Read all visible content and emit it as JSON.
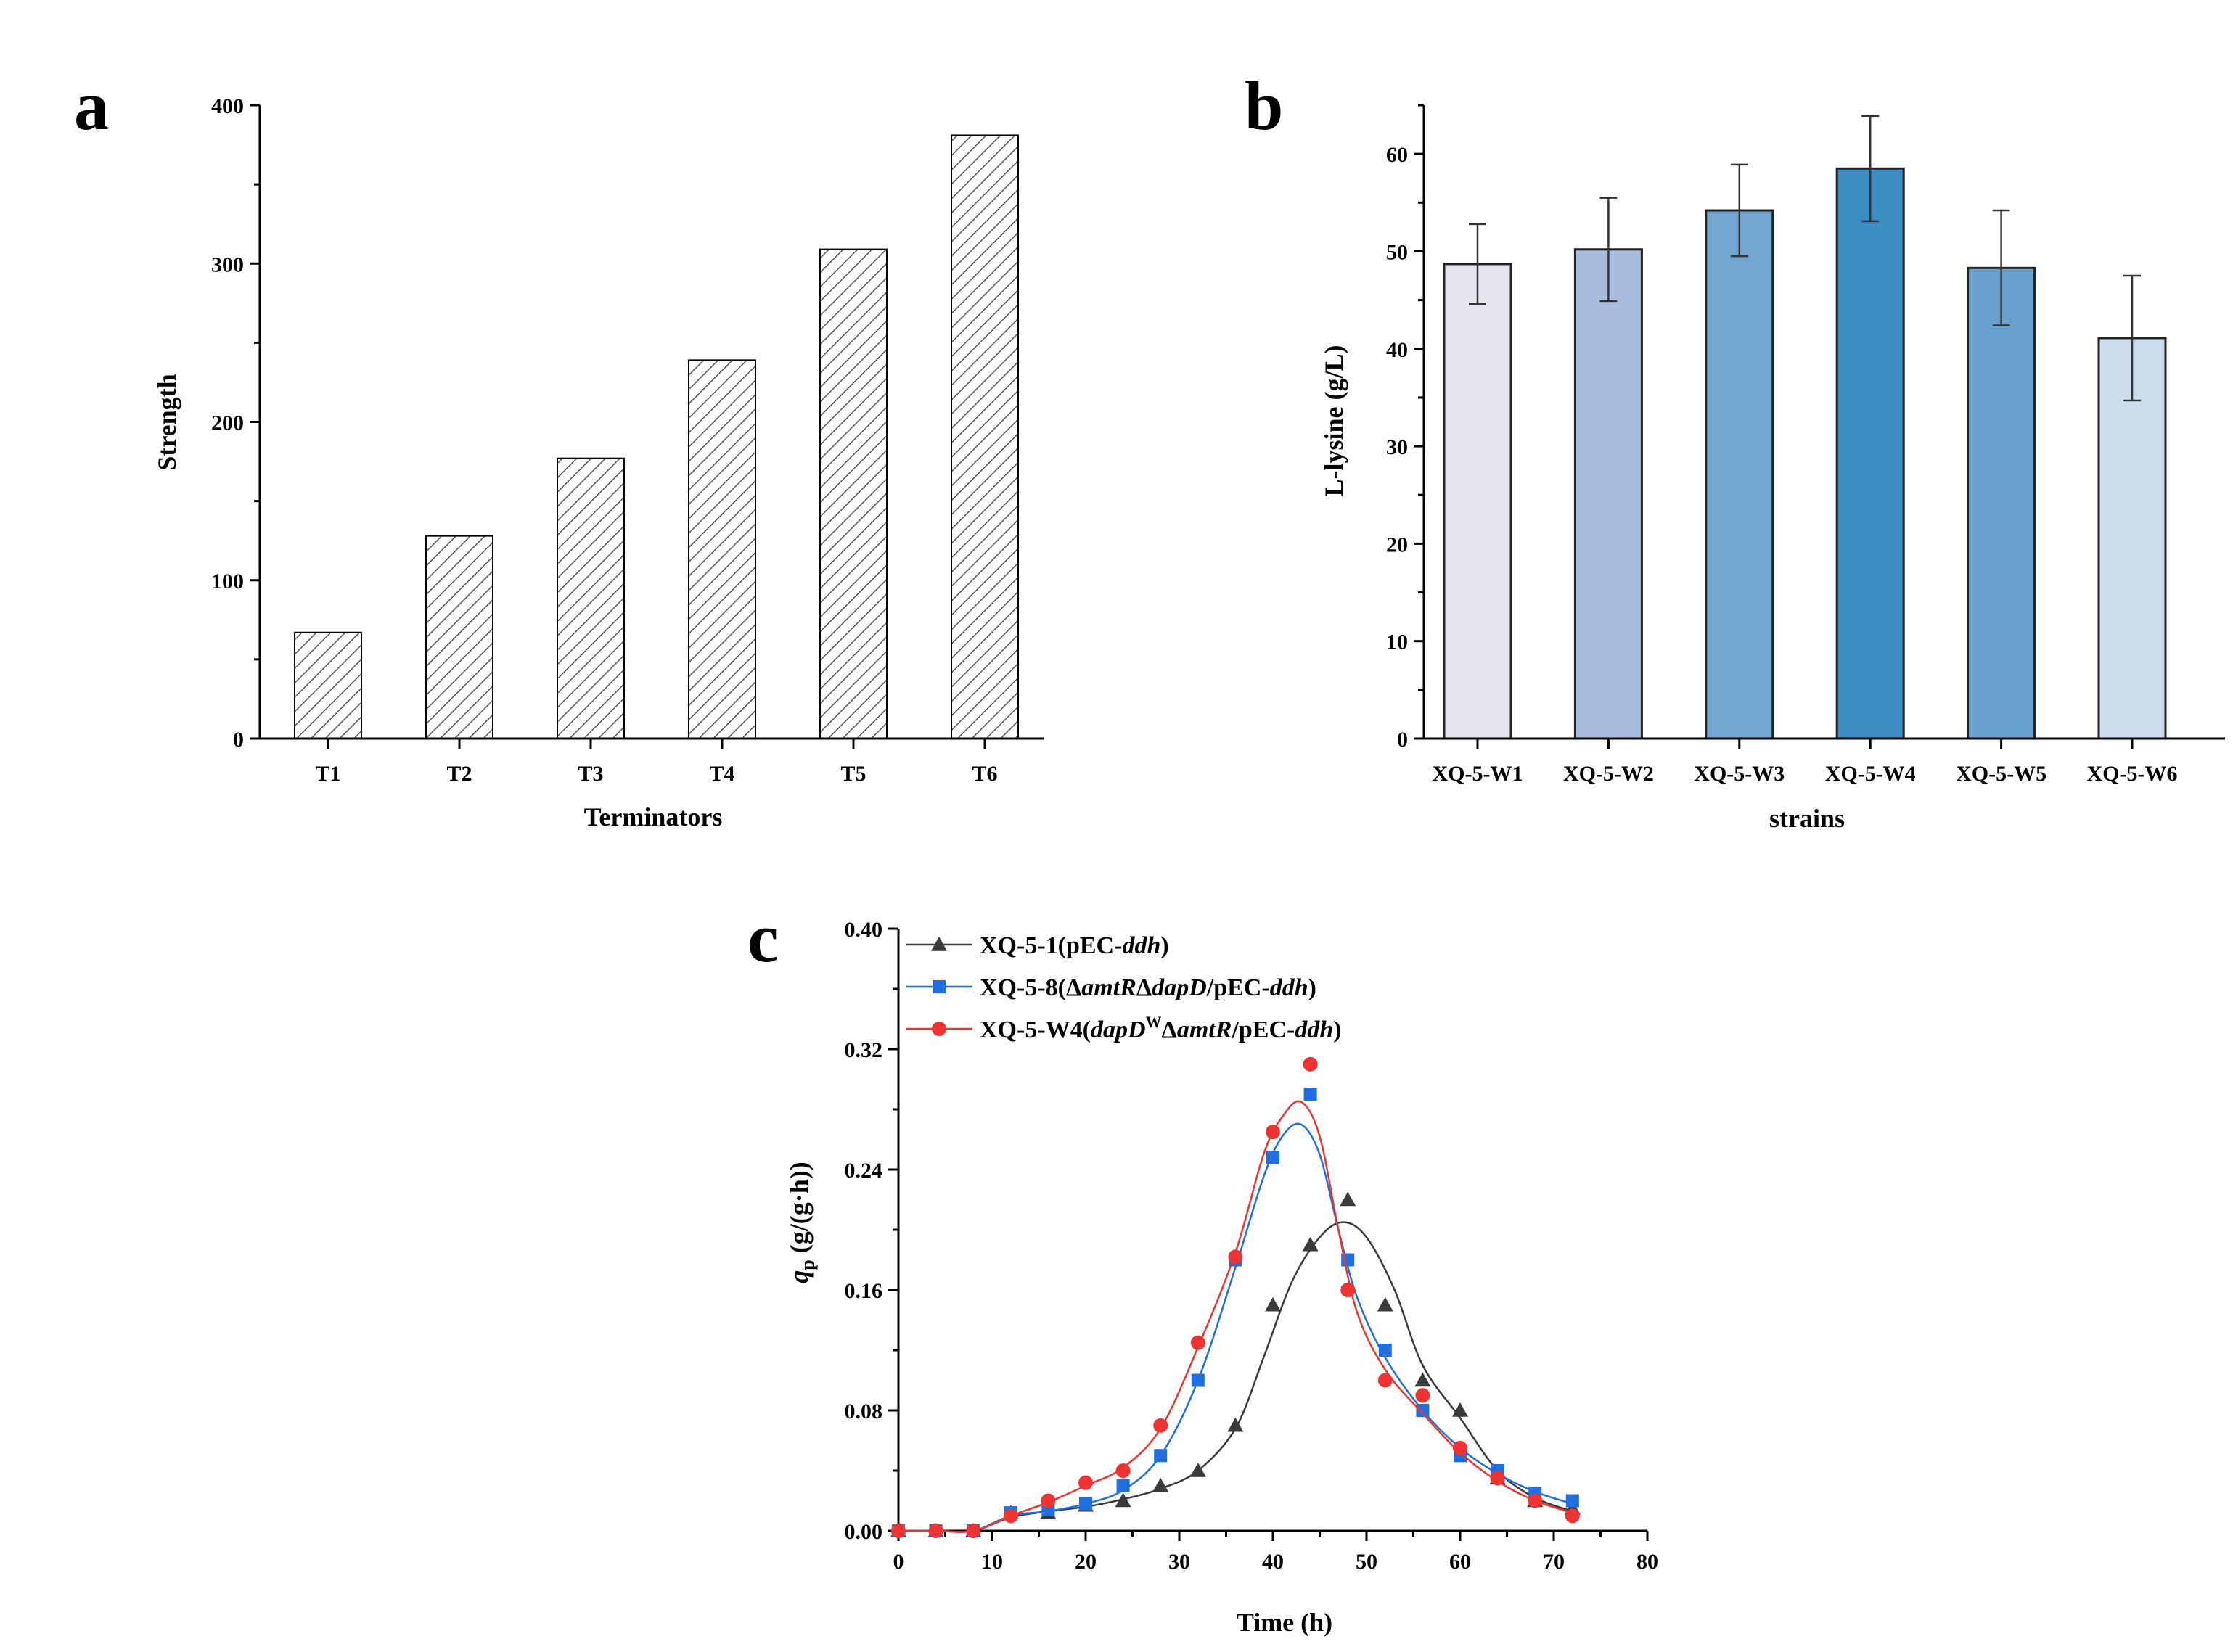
{
  "panels": {
    "a": "a",
    "b": "b",
    "c": "c"
  },
  "colors": {
    "axis": "#000000",
    "hatch_stroke": "#555555",
    "error_bar": "#333333",
    "series_xq51": "#3a3a3a",
    "series_xq58": "#1f6fe0",
    "series_xq5w4": "#ee3333"
  },
  "chart_data": [
    {
      "id": "a",
      "type": "bar",
      "pattern": "hatched",
      "title": "",
      "xlabel": "Terminators",
      "ylabel": "Strength",
      "categories": [
        "T1",
        "T2",
        "T3",
        "T4",
        "T5",
        "T6"
      ],
      "values": [
        67,
        128,
        177,
        239,
        309,
        381
      ],
      "ylim": [
        0,
        400
      ],
      "yticks": [
        0,
        100,
        200,
        300,
        400
      ],
      "grid": false
    },
    {
      "id": "b",
      "type": "bar",
      "title": "",
      "xlabel": "strains",
      "ylabel": "L-lysine (g/L)",
      "categories": [
        "XQ-5-W1",
        "XQ-5-W2",
        "XQ-5-W3",
        "XQ-5-W4",
        "XQ-5-W5",
        "XQ-5-W6"
      ],
      "values": [
        48.7,
        50.2,
        54.2,
        58.5,
        48.3,
        41.1
      ],
      "errors": [
        4.1,
        5.3,
        4.7,
        5.4,
        5.9,
        6.4
      ],
      "bar_colors": [
        "#e8e4ef",
        "#a8bddd",
        "#73a6d0",
        "#3c8dc3",
        "#6aa2cf",
        "#cbdced"
      ],
      "ylim": [
        0,
        65
      ],
      "yticks": [
        0,
        10,
        20,
        30,
        40,
        50,
        60
      ],
      "grid": false
    },
    {
      "id": "c",
      "type": "line",
      "title": "",
      "xlabel": "Time (h)",
      "ylabel_italic": "q",
      "ylabel_sub": "p",
      "ylabel_rest": " (g/(g·h))",
      "xlim": [
        0,
        80
      ],
      "ylim": [
        0,
        0.4
      ],
      "xticks": [
        "0",
        "10",
        "20",
        "30",
        "40",
        "50",
        "60",
        "70",
        "80"
      ],
      "yticks": [
        "0.00",
        "0.08",
        "0.16",
        "0.24",
        "0.32",
        "0.40"
      ],
      "legend_position": "top-left",
      "series": [
        {
          "name": "XQ-5-1(pEC-ddh)",
          "legend_parts": [
            {
              "text": "XQ-5-1(pEC-",
              "style": "normal"
            },
            {
              "text": "ddh",
              "style": "italic"
            },
            {
              "text": ")",
              "style": "normal"
            }
          ],
          "marker": "triangle",
          "color": "#3a3a3a",
          "x": [
            0,
            4,
            8,
            12,
            16,
            20,
            24,
            28,
            32,
            36,
            40,
            44,
            48,
            52,
            56,
            60,
            64,
            68,
            72
          ],
          "y": [
            0.0,
            0.0,
            0.0,
            0.012,
            0.012,
            0.017,
            0.02,
            0.03,
            0.04,
            0.07,
            0.15,
            0.19,
            0.22,
            0.15,
            0.1,
            0.08,
            0.035,
            0.02,
            0.015
          ],
          "fit_x": [
            0,
            4,
            8,
            12,
            16,
            20,
            24,
            28,
            32,
            36,
            39,
            42,
            45,
            47.5,
            50,
            53,
            56,
            60,
            64,
            68,
            72
          ],
          "fit_y": [
            0.0,
            0.0,
            0.0,
            0.009,
            0.013,
            0.016,
            0.021,
            0.028,
            0.04,
            0.068,
            0.115,
            0.165,
            0.195,
            0.205,
            0.195,
            0.16,
            0.11,
            0.075,
            0.04,
            0.022,
            0.013
          ]
        },
        {
          "name": "XQ-5-8(ΔamtRΔdapD/pEC-ddh)",
          "legend_parts": [
            {
              "text": "XQ-5-8(Δ",
              "style": "normal"
            },
            {
              "text": "amtR",
              "style": "italic"
            },
            {
              "text": "Δ",
              "style": "normal"
            },
            {
              "text": "dapD",
              "style": "italic"
            },
            {
              "text": "/pEC-",
              "style": "normal"
            },
            {
              "text": "ddh",
              "style": "italic"
            },
            {
              "text": ")",
              "style": "normal"
            }
          ],
          "marker": "square",
          "color": "#1f6fe0",
          "x": [
            0,
            4,
            8,
            12,
            16,
            20,
            24,
            28,
            32,
            36,
            40,
            44,
            48,
            52,
            56,
            60,
            64,
            68,
            72
          ],
          "y": [
            0.0,
            0.0,
            0.0,
            0.012,
            0.014,
            0.018,
            0.03,
            0.05,
            0.1,
            0.18,
            0.248,
            0.29,
            0.18,
            0.12,
            0.08,
            0.05,
            0.04,
            0.025,
            0.02
          ],
          "fit_x": [
            0,
            4,
            8,
            12,
            16,
            20,
            24,
            28,
            32,
            36,
            39,
            41,
            43,
            45,
            47,
            49,
            52,
            56,
            60,
            64,
            68,
            72
          ],
          "fit_y": [
            0.0,
            0.0,
            0.0,
            0.01,
            0.013,
            0.018,
            0.027,
            0.05,
            0.1,
            0.175,
            0.235,
            0.262,
            0.27,
            0.25,
            0.2,
            0.155,
            0.115,
            0.08,
            0.055,
            0.038,
            0.026,
            0.018
          ]
        },
        {
          "name": "XQ-5-W4(dapDWΔamtR/pEC-ddh)",
          "legend_parts": [
            {
              "text": "XQ-5-W4(",
              "style": "normal"
            },
            {
              "text": "dapD",
              "style": "italic"
            },
            {
              "text": "W",
              "style": "super"
            },
            {
              "text": "Δ",
              "style": "normal"
            },
            {
              "text": "amtR",
              "style": "italic"
            },
            {
              "text": "/pEC-",
              "style": "normal"
            },
            {
              "text": "ddh",
              "style": "italic"
            },
            {
              "text": ")",
              "style": "normal"
            }
          ],
          "marker": "circle",
          "color": "#ee3333",
          "x": [
            0,
            4,
            8,
            12,
            16,
            20,
            24,
            28,
            32,
            36,
            40,
            44,
            48,
            52,
            56,
            60,
            64,
            68,
            72
          ],
          "y": [
            0.0,
            0.0,
            0.0,
            0.01,
            0.02,
            0.032,
            0.04,
            0.07,
            0.125,
            0.182,
            0.265,
            0.31,
            0.16,
            0.1,
            0.09,
            0.055,
            0.035,
            0.02,
            0.01
          ],
          "fit_x": [
            0,
            4,
            8,
            12,
            16,
            20,
            24,
            28,
            32,
            36,
            39,
            41,
            43,
            45,
            47,
            49,
            52,
            56,
            60,
            64,
            68,
            72
          ],
          "fit_y": [
            0.0,
            0.0,
            0.0,
            0.01,
            0.019,
            0.03,
            0.042,
            0.068,
            0.122,
            0.185,
            0.25,
            0.275,
            0.285,
            0.262,
            0.2,
            0.145,
            0.107,
            0.078,
            0.052,
            0.033,
            0.02,
            0.012
          ]
        }
      ]
    }
  ]
}
